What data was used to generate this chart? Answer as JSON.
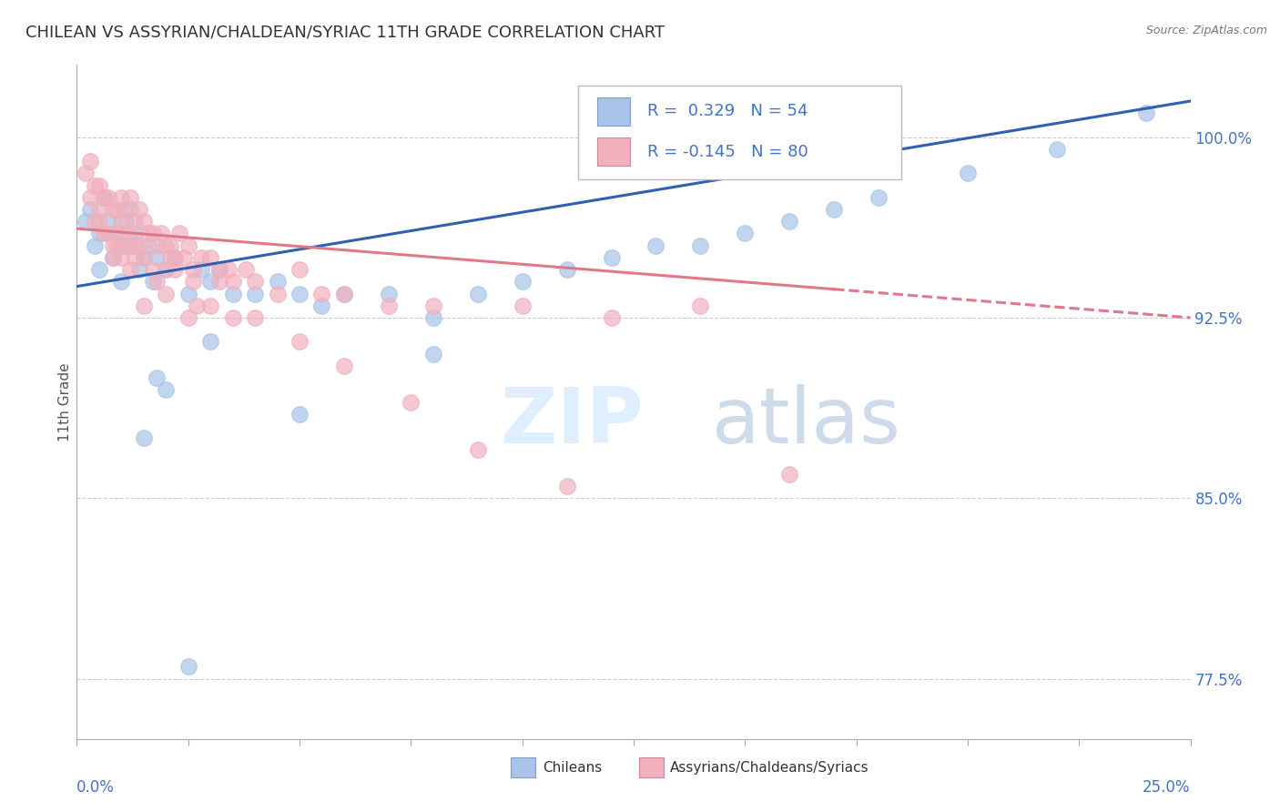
{
  "title": "CHILEAN VS ASSYRIAN/CHALDEAN/SYRIAC 11TH GRADE CORRELATION CHART",
  "source": "Source: ZipAtlas.com",
  "ylabel": "11th Grade",
  "r_blue": 0.329,
  "n_blue": 54,
  "r_pink": -0.145,
  "n_pink": 80,
  "y_ticks": [
    77.5,
    85.0,
    92.5,
    100.0
  ],
  "y_tick_labels": [
    "77.5%",
    "85.0%",
    "92.5%",
    "100.0%"
  ],
  "blue_color": "#a8c4e8",
  "pink_color": "#f0b0be",
  "blue_line_color": "#3060b0",
  "pink_line_color": "#e07888",
  "legend_blue_label": "Chileans",
  "legend_pink_label": "Assyrians/Chaldeans/Syriacs",
  "blue_scatter_x": [
    0.2,
    0.3,
    0.4,
    0.5,
    0.5,
    0.6,
    0.7,
    0.8,
    0.9,
    1.0,
    1.0,
    1.1,
    1.2,
    1.2,
    1.3,
    1.4,
    1.5,
    1.6,
    1.7,
    1.8,
    2.0,
    2.2,
    2.5,
    2.8,
    3.0,
    3.2,
    3.5,
    4.0,
    4.5,
    5.0,
    5.5,
    6.0,
    7.0,
    8.0,
    9.0,
    10.0,
    11.0,
    12.0,
    13.0,
    14.0,
    15.0,
    16.0,
    17.0,
    18.0,
    20.0,
    22.0,
    24.0,
    2.0,
    1.5,
    1.8,
    3.0,
    5.0,
    8.0,
    2.5
  ],
  "blue_scatter_y": [
    96.5,
    97.0,
    95.5,
    96.0,
    94.5,
    97.5,
    96.5,
    95.0,
    96.0,
    95.5,
    94.0,
    96.5,
    97.0,
    95.5,
    96.0,
    94.5,
    95.0,
    95.5,
    94.0,
    95.0,
    94.5,
    95.0,
    93.5,
    94.5,
    94.0,
    94.5,
    93.5,
    93.5,
    94.0,
    93.5,
    93.0,
    93.5,
    93.5,
    92.5,
    93.5,
    94.0,
    94.5,
    95.0,
    95.5,
    95.5,
    96.0,
    96.5,
    97.0,
    97.5,
    98.5,
    99.5,
    101.0,
    89.5,
    87.5,
    90.0,
    91.5,
    88.5,
    91.0,
    78.0
  ],
  "pink_scatter_x": [
    0.2,
    0.3,
    0.3,
    0.4,
    0.4,
    0.5,
    0.5,
    0.6,
    0.6,
    0.7,
    0.7,
    0.8,
    0.8,
    0.9,
    0.9,
    1.0,
    1.0,
    1.0,
    1.1,
    1.1,
    1.2,
    1.2,
    1.3,
    1.3,
    1.4,
    1.4,
    1.5,
    1.5,
    1.6,
    1.7,
    1.8,
    1.9,
    2.0,
    2.0,
    2.1,
    2.2,
    2.3,
    2.4,
    2.5,
    2.6,
    2.8,
    3.0,
    3.2,
    3.5,
    3.8,
    4.0,
    4.5,
    5.0,
    5.5,
    6.0,
    7.0,
    8.0,
    10.0,
    12.0,
    14.0,
    1.5,
    2.0,
    2.5,
    3.0,
    3.5,
    1.2,
    1.8,
    2.2,
    2.7,
    3.2,
    4.0,
    5.0,
    6.0,
    7.5,
    9.0,
    11.0,
    0.5,
    0.8,
    1.0,
    1.3,
    1.7,
    2.1,
    2.6,
    3.4,
    16.0
  ],
  "pink_scatter_y": [
    98.5,
    99.0,
    97.5,
    98.0,
    96.5,
    98.0,
    97.0,
    97.5,
    96.0,
    97.5,
    96.0,
    97.0,
    95.5,
    97.0,
    95.5,
    97.5,
    96.5,
    95.0,
    97.0,
    95.5,
    97.5,
    96.0,
    96.5,
    95.0,
    97.0,
    95.5,
    96.5,
    95.0,
    96.0,
    96.0,
    95.5,
    96.0,
    95.5,
    94.5,
    95.5,
    95.0,
    96.0,
    95.0,
    95.5,
    94.5,
    95.0,
    95.0,
    94.5,
    94.0,
    94.5,
    94.0,
    93.5,
    94.5,
    93.5,
    93.5,
    93.0,
    93.0,
    93.0,
    92.5,
    93.0,
    93.0,
    93.5,
    92.5,
    93.0,
    92.5,
    94.5,
    94.0,
    94.5,
    93.0,
    94.0,
    92.5,
    91.5,
    90.5,
    89.0,
    87.0,
    85.5,
    96.5,
    95.0,
    96.0,
    95.5,
    94.5,
    95.0,
    94.0,
    94.5,
    86.0
  ],
  "blue_trend_x0": 0,
  "blue_trend_y0": 93.8,
  "blue_trend_x1": 25,
  "blue_trend_y1": 101.5,
  "pink_trend_x0": 0,
  "pink_trend_y0": 96.2,
  "pink_trend_x1": 25,
  "pink_trend_y1": 92.5,
  "pink_solid_x_end": 17,
  "xlim": [
    0,
    25
  ],
  "ylim": [
    75,
    103
  ]
}
